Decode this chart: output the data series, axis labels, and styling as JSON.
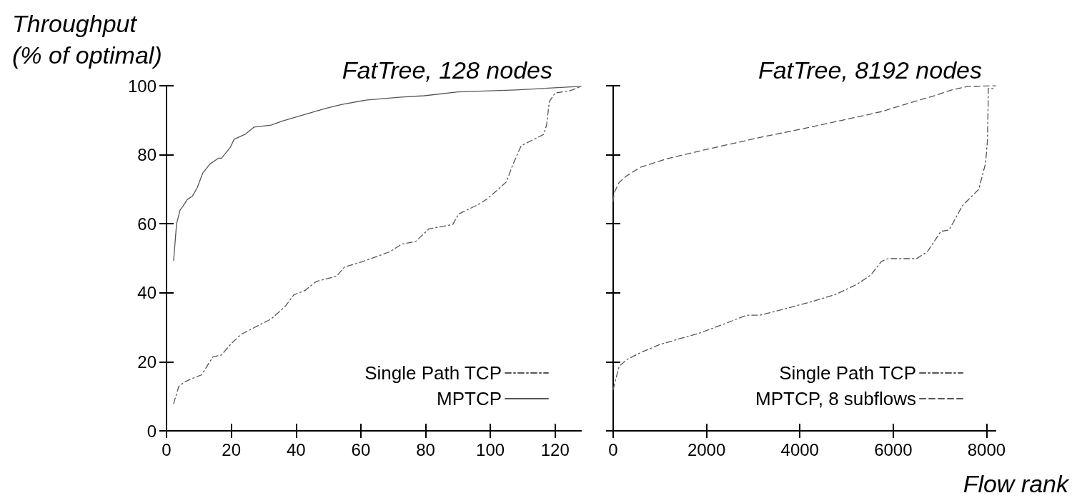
{
  "chart_data": [
    {
      "type": "line",
      "title": "FatTree, 128 nodes",
      "ylabel": "Throughput\n(% of optimal)",
      "xlim": [
        0,
        128
      ],
      "xticks": [
        0,
        20,
        40,
        60,
        80,
        100,
        120
      ],
      "ylim": [
        0,
        100
      ],
      "yticks": [
        0,
        20,
        40,
        60,
        80,
        100
      ],
      "legend": "bottom right",
      "marker": "none",
      "series": [
        {
          "name": "Single Path TCP",
          "color": "#555555",
          "line_style": "dashdot",
          "x": [
            2.2,
            3.8,
            5.5,
            7.7,
            10.8,
            14.3,
            17,
            20,
            23.1,
            27.9,
            32.3,
            36.7,
            39.3,
            42.8,
            46.3,
            52.5,
            55,
            60.4,
            69,
            72.6,
            77,
            81,
            88.4,
            90.2,
            96.3,
            99,
            103.3,
            105,
            106.8,
            109.5,
            116.5,
            117.4,
            118.2,
            120,
            124.8,
            128
          ],
          "values": [
            7.9,
            12.9,
            14.1,
            15.1,
            16.2,
            21.4,
            22,
            25.3,
            28,
            30.3,
            32.4,
            36.1,
            39.4,
            40.7,
            43.3,
            44.8,
            47.5,
            49,
            51.9,
            54.1,
            54.9,
            58.5,
            59.8,
            62.8,
            65.6,
            67.2,
            70.7,
            72.2,
            76.8,
            82.6,
            85.9,
            88.8,
            95.4,
            97.9,
            98.6,
            99.8
          ]
        },
        {
          "name": "MPTCP",
          "color": "#555555",
          "line_style": "solid",
          "x": [
            2.2,
            3.1,
            4.2,
            5,
            6.4,
            8,
            9.5,
            11.2,
            13.4,
            16,
            17,
            19.6,
            20.9,
            24.4,
            27,
            32.3,
            35.8,
            42,
            49,
            54.2,
            62,
            72.6,
            79.6,
            90,
            108,
            128
          ],
          "values": [
            49.4,
            60,
            64,
            65,
            67,
            68,
            70.5,
            74.7,
            77.3,
            79,
            79,
            82,
            84.5,
            86,
            88,
            88.6,
            89.8,
            91.5,
            93.4,
            94.6,
            95.9,
            96.7,
            97.1,
            98.2,
            98.8,
            99.8
          ]
        }
      ]
    },
    {
      "type": "line",
      "title": "FatTree, 8192 nodes",
      "xlabel": "Flow rank",
      "xlim": [
        0,
        8192
      ],
      "xticks": [
        0,
        2000,
        4000,
        6000,
        8000
      ],
      "ylim": [
        0,
        100
      ],
      "yticks": [
        0,
        20,
        40,
        60,
        80,
        100
      ],
      "tick_labels": "x",
      "legend": "bottom right",
      "marker": "none",
      "series": [
        {
          "name": "Single Path TCP",
          "color": "#555555",
          "line_style": "dashdot",
          "x": [
            0,
            127,
            300,
            591,
            997,
            1402,
            1866,
            2445,
            2851,
            3140,
            3720,
            4299,
            4762,
            5226,
            5516,
            5747,
            5892,
            6500,
            6732,
            7022,
            7196,
            7486,
            7833,
            7978,
            8018,
            8035,
            8035,
            8180
          ],
          "values": [
            12,
            18.7,
            20.7,
            22.7,
            25,
            26.6,
            28.4,
            31.3,
            33.5,
            33.5,
            35.5,
            37.6,
            39.5,
            42.5,
            45.1,
            49.1,
            49.9,
            49.9,
            51.9,
            57.8,
            58.2,
            65.3,
            70,
            77.5,
            83.9,
            95.7,
            99.2,
            99.2
          ]
        },
        {
          "name": "MPTCP, 8 subflows",
          "color": "#555555",
          "line_style": "dashed",
          "x": [
            0,
            20,
            127,
            300,
            591,
            1112,
            1981,
            3140,
            4009,
            4878,
            5747,
            6326,
            6906,
            7254,
            7601,
            8192
          ],
          "values": [
            66.5,
            68.9,
            72,
            74,
            76.4,
            78.7,
            81.5,
            85,
            87.4,
            89.9,
            92.5,
            94.9,
            97.2,
            98.8,
            99.8,
            100
          ]
        }
      ]
    }
  ]
}
